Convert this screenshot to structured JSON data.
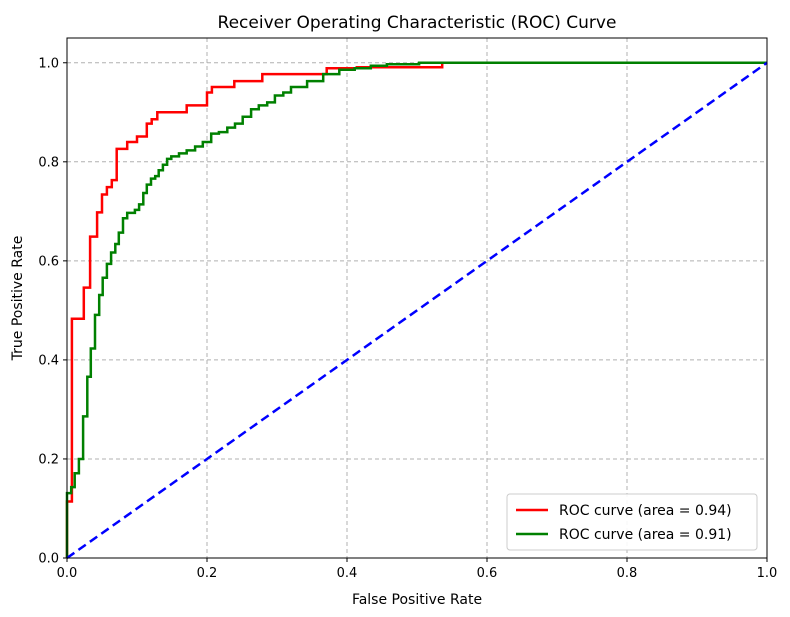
{
  "chart_data": {
    "type": "line",
    "title": "Receiver Operating Characteristic (ROC) Curve",
    "xlabel": "False Positive Rate",
    "ylabel": "True Positive Rate",
    "xlim": [
      0.0,
      1.0
    ],
    "ylim": [
      0.0,
      1.05
    ],
    "x_ticks": [
      "0.0",
      "0.2",
      "0.4",
      "0.6",
      "0.8",
      "1.0"
    ],
    "y_ticks": [
      "0.0",
      "0.2",
      "0.4",
      "0.6",
      "0.8",
      "1.0"
    ],
    "grid": true,
    "legend_position": "lower-right",
    "series": [
      {
        "name": "ROC curve (area = 0.94)",
        "color": "#ff0000",
        "style": "solid",
        "x": [
          0.0,
          0.0,
          0.007,
          0.007,
          0.01,
          0.01,
          0.024,
          0.024,
          0.033,
          0.033,
          0.043,
          0.043,
          0.05,
          0.05,
          0.057,
          0.057,
          0.064,
          0.064,
          0.071,
          0.071,
          0.086,
          0.086,
          0.1,
          0.1,
          0.114,
          0.114,
          0.121,
          0.121,
          0.129,
          0.129,
          0.143,
          0.143,
          0.171,
          0.171,
          0.2,
          0.2,
          0.207,
          0.207,
          0.239,
          0.239,
          0.279,
          0.279,
          0.371,
          0.371,
          0.414,
          0.414,
          0.536,
          0.536,
          0.629,
          0.629,
          1.0
        ],
        "y": [
          0.0,
          0.114,
          0.114,
          0.483,
          0.483,
          0.483,
          0.483,
          0.546,
          0.546,
          0.649,
          0.649,
          0.698,
          0.698,
          0.734,
          0.734,
          0.749,
          0.749,
          0.763,
          0.763,
          0.826,
          0.826,
          0.84,
          0.84,
          0.851,
          0.851,
          0.877,
          0.877,
          0.886,
          0.886,
          0.9,
          0.9,
          0.9,
          0.9,
          0.914,
          0.914,
          0.94,
          0.94,
          0.951,
          0.951,
          0.963,
          0.963,
          0.977,
          0.977,
          0.989,
          0.989,
          0.991,
          0.991,
          1.0,
          1.0,
          1.0,
          1.0
        ]
      },
      {
        "name": "ROC curve (area = 0.91)",
        "color": "#008000",
        "style": "solid",
        "x": [
          0.0,
          0.0,
          0.006,
          0.006,
          0.011,
          0.011,
          0.017,
          0.017,
          0.023,
          0.023,
          0.029,
          0.029,
          0.034,
          0.034,
          0.04,
          0.04,
          0.046,
          0.046,
          0.051,
          0.051,
          0.057,
          0.057,
          0.063,
          0.063,
          0.069,
          0.069,
          0.074,
          0.074,
          0.08,
          0.08,
          0.086,
          0.086,
          0.091,
          0.091,
          0.097,
          0.097,
          0.103,
          0.103,
          0.109,
          0.109,
          0.114,
          0.114,
          0.12,
          0.12,
          0.126,
          0.126,
          0.131,
          0.131,
          0.137,
          0.137,
          0.143,
          0.143,
          0.149,
          0.149,
          0.16,
          0.16,
          0.171,
          0.171,
          0.183,
          0.183,
          0.194,
          0.194,
          0.206,
          0.206,
          0.217,
          0.217,
          0.229,
          0.229,
          0.24,
          0.24,
          0.251,
          0.251,
          0.263,
          0.263,
          0.274,
          0.274,
          0.286,
          0.286,
          0.297,
          0.297,
          0.309,
          0.309,
          0.32,
          0.32,
          0.343,
          0.343,
          0.366,
          0.366,
          0.389,
          0.389,
          0.411,
          0.411,
          0.434,
          0.434,
          0.457,
          0.457,
          0.48,
          0.48,
          0.503,
          0.503,
          0.526,
          0.526,
          0.571,
          0.571,
          0.617,
          0.617,
          1.0
        ],
        "y": [
          0.0,
          0.131,
          0.131,
          0.143,
          0.143,
          0.171,
          0.171,
          0.2,
          0.2,
          0.286,
          0.286,
          0.366,
          0.366,
          0.423,
          0.423,
          0.491,
          0.491,
          0.531,
          0.531,
          0.566,
          0.566,
          0.594,
          0.594,
          0.617,
          0.617,
          0.634,
          0.634,
          0.657,
          0.657,
          0.686,
          0.686,
          0.697,
          0.697,
          0.697,
          0.697,
          0.703,
          0.703,
          0.714,
          0.714,
          0.737,
          0.737,
          0.754,
          0.754,
          0.766,
          0.766,
          0.771,
          0.771,
          0.783,
          0.783,
          0.794,
          0.794,
          0.806,
          0.806,
          0.811,
          0.811,
          0.817,
          0.817,
          0.823,
          0.823,
          0.831,
          0.831,
          0.84,
          0.84,
          0.857,
          0.857,
          0.86,
          0.86,
          0.869,
          0.869,
          0.877,
          0.877,
          0.891,
          0.891,
          0.906,
          0.906,
          0.914,
          0.914,
          0.92,
          0.92,
          0.934,
          0.934,
          0.94,
          0.94,
          0.951,
          0.951,
          0.963,
          0.963,
          0.977,
          0.977,
          0.986,
          0.986,
          0.989,
          0.989,
          0.994,
          0.994,
          0.997,
          0.997,
          0.997,
          0.997,
          1.0,
          1.0,
          1.0,
          1.0,
          1.0,
          1.0,
          1.0,
          1.0
        ]
      },
      {
        "name": "",
        "color": "#0000ff",
        "style": "dashed",
        "x": [
          0.0,
          1.0
        ],
        "y": [
          0.0,
          1.0
        ]
      }
    ]
  }
}
